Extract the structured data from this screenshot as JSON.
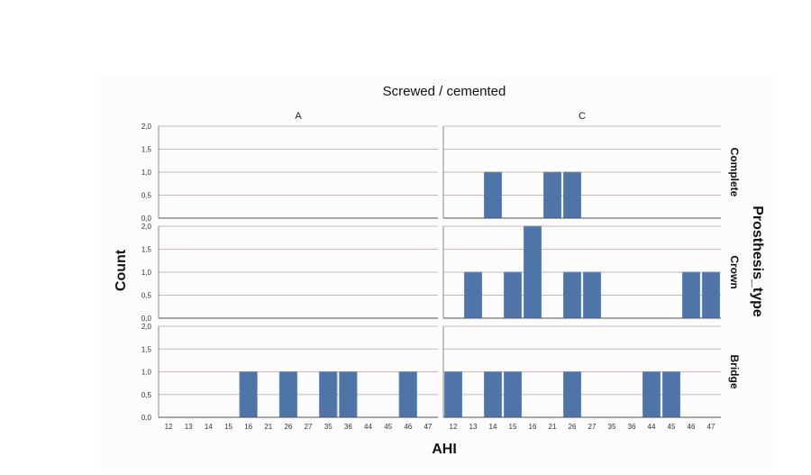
{
  "chart_data": {
    "type": "bar",
    "title": "Screwed / cemented",
    "xlabel": "AHI",
    "ylabel": "Count",
    "row_variable_label": "Prosthesis_type",
    "categories": [
      "12",
      "13",
      "14",
      "15",
      "16",
      "21",
      "26",
      "27",
      "35",
      "36",
      "44",
      "45",
      "46",
      "47"
    ],
    "yticks": [
      "0,0",
      "0,5",
      "1,0",
      "1,5",
      "2,0"
    ],
    "ylim": [
      0,
      2
    ],
    "columns": [
      "A",
      "C"
    ],
    "rows": [
      "Complete",
      "Crown",
      "Bridge"
    ],
    "grid": true,
    "panels": [
      {
        "column": "A",
        "row": "Complete",
        "values": [
          0,
          0,
          0,
          0,
          0,
          0,
          0,
          0,
          0,
          0,
          0,
          0,
          0,
          0
        ]
      },
      {
        "column": "C",
        "row": "Complete",
        "values": [
          0,
          0,
          1,
          0,
          0,
          1,
          1,
          0,
          0,
          0,
          0,
          0,
          0,
          0
        ]
      },
      {
        "column": "A",
        "row": "Crown",
        "values": [
          0,
          0,
          0,
          0,
          0,
          0,
          0,
          0,
          0,
          0,
          0,
          0,
          0,
          0
        ]
      },
      {
        "column": "C",
        "row": "Crown",
        "values": [
          0,
          1,
          0,
          1,
          2,
          0,
          1,
          1,
          0,
          0,
          0,
          0,
          1,
          1
        ]
      },
      {
        "column": "A",
        "row": "Bridge",
        "values": [
          0,
          0,
          0,
          0,
          1,
          0,
          1,
          0,
          1,
          1,
          0,
          0,
          1,
          0
        ]
      },
      {
        "column": "C",
        "row": "Bridge",
        "values": [
          1,
          0,
          1,
          1,
          0,
          0,
          1,
          0,
          0,
          0,
          1,
          1,
          0,
          0
        ]
      }
    ],
    "bar_color": "#4f74a8",
    "bar_edge_color": "#6d8fbe",
    "gridline_color": "#c9b7b7",
    "background_color": "#fcfcfc"
  }
}
